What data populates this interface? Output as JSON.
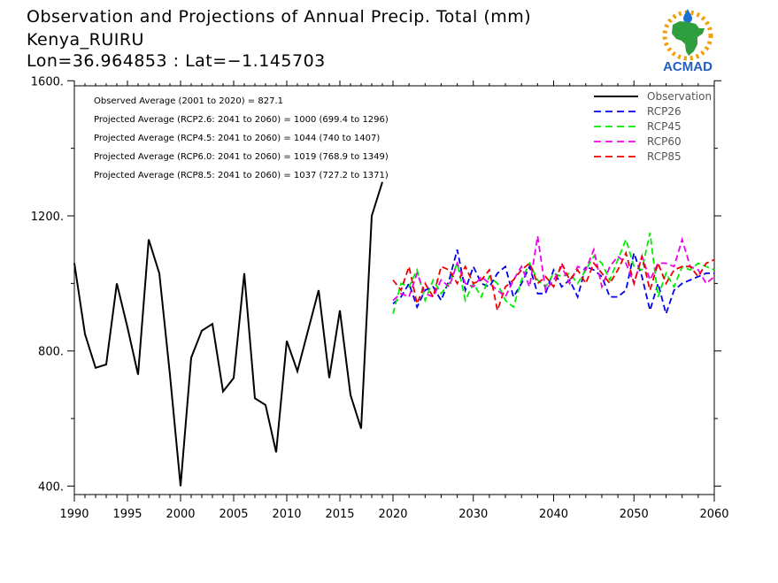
{
  "header": {
    "title": "Observation and Projections of Annual Precip. Total (mm)",
    "location": "Kenya_RUIRU",
    "coords": "Lon=36.964853 : Lat=−1.145703"
  },
  "logo": {
    "text": "ACMAD",
    "colors": {
      "africa": "#2e9e3e",
      "sun": "#f2a007",
      "drop": "#1f6fd1",
      "text": "#1f5fbf"
    }
  },
  "stats": [
    "Observed Average (2001 to 2020) = 827.1",
    "Projected Average (RCP2.6: 2041 to 2060) = 1000 (699.4 to 1296)",
    "Projected Average (RCP4.5: 2041 to 2060) = 1044 (740 to 1407)",
    "Projected Average (RCP6.0: 2041 to 2060) = 1019 (768.9 to 1349)",
    "Projected Average (RCP8.5: 2041 to 2060) = 1037 (727.2 to 1371)"
  ],
  "chart_data": {
    "type": "line",
    "title": "Observation and Projections of Annual Precip. Total (mm)",
    "xlabel": "",
    "ylabel": "",
    "xlim": [
      1990,
      2060
    ],
    "ylim": [
      375,
      1585
    ],
    "legend_position": "top-right",
    "x_ticks": [
      1990,
      1995,
      2000,
      2005,
      2010,
      2015,
      2020,
      2030,
      2040,
      2050,
      2060
    ],
    "y_ticks": [
      400,
      800,
      1200,
      1600
    ],
    "y_tick_labels": [
      "400.",
      "800.",
      "1200.",
      "1600."
    ],
    "series": [
      {
        "name": "Observation",
        "color": "#000000",
        "dash": "solid",
        "x": [
          1990,
          1991,
          1992,
          1993,
          1994,
          1995,
          1996,
          1997,
          1998,
          1999,
          2000,
          2001,
          2002,
          2003,
          2004,
          2005,
          2006,
          2007,
          2008,
          2009,
          2010,
          2011,
          2012,
          2013,
          2014,
          2015,
          2016,
          2017,
          2018,
          2019
        ],
        "y": [
          1060,
          850,
          750,
          760,
          1000,
          870,
          730,
          1130,
          1030,
          730,
          400,
          780,
          860,
          880,
          680,
          720,
          1030,
          660,
          640,
          500,
          830,
          740,
          860,
          980,
          720,
          920,
          670,
          570,
          1200,
          1300
        ]
      },
      {
        "name": "RCP26",
        "color": "#0000ee",
        "dash": "dashed",
        "x": [
          2020,
          2021,
          2022,
          2023,
          2024,
          2025,
          2026,
          2027,
          2028,
          2029,
          2030,
          2031,
          2032,
          2033,
          2034,
          2035,
          2036,
          2037,
          2038,
          2039,
          2040,
          2041,
          2042,
          2043,
          2044,
          2045,
          2046,
          2047,
          2048,
          2049,
          2050,
          2051,
          2052,
          2053,
          2054,
          2055,
          2056,
          2057,
          2058,
          2059,
          2060
        ],
        "y": [
          940,
          960,
          1000,
          930,
          980,
          990,
          950,
          1010,
          1100,
          980,
          1050,
          1000,
          990,
          1030,
          1050,
          960,
          1000,
          1050,
          970,
          970,
          1040,
          990,
          1010,
          960,
          1050,
          1040,
          1020,
          960,
          960,
          980,
          1090,
          1020,
          920,
          1000,
          910,
          980,
          1000,
          1010,
          1020,
          1030,
          1030
        ]
      },
      {
        "name": "RCP45",
        "color": "#00ee00",
        "dash": "dashed",
        "x": [
          2020,
          2021,
          2022,
          2023,
          2024,
          2025,
          2026,
          2027,
          2028,
          2029,
          2030,
          2031,
          2032,
          2033,
          2034,
          2035,
          2036,
          2037,
          2038,
          2039,
          2040,
          2041,
          2042,
          2043,
          2044,
          2045,
          2046,
          2047,
          2048,
          2049,
          2050,
          2051,
          2052,
          2053,
          2054,
          2055,
          2056,
          2057,
          2058,
          2059,
          2060
        ],
        "y": [
          910,
          1000,
          990,
          1040,
          950,
          1010,
          970,
          1000,
          1060,
          950,
          1000,
          960,
          1020,
          1000,
          950,
          930,
          1010,
          1060,
          1010,
          990,
          1030,
          1020,
          1030,
          1000,
          1040,
          1080,
          1060,
          1010,
          1070,
          1130,
          1050,
          1040,
          1150,
          960,
          1030,
          990,
          1050,
          1040,
          1060,
          1050,
          1040
        ]
      },
      {
        "name": "RCP60",
        "color": "#ee00ee",
        "dash": "dashed",
        "x": [
          2020,
          2021,
          2022,
          2023,
          2024,
          2025,
          2026,
          2027,
          2028,
          2029,
          2030,
          2031,
          2032,
          2033,
          2034,
          2035,
          2036,
          2037,
          2038,
          2039,
          2040,
          2041,
          2042,
          2043,
          2044,
          2045,
          2046,
          2047,
          2048,
          2049,
          2050,
          2051,
          2052,
          2053,
          2054,
          2055,
          2056,
          2057,
          2058,
          2059,
          2060
        ],
        "y": [
          950,
          970,
          960,
          1030,
          970,
          960,
          1010,
          990,
          1060,
          1000,
          990,
          1020,
          1000,
          980,
          960,
          1010,
          1050,
          990,
          1140,
          980,
          1010,
          1050,
          1000,
          1050,
          1040,
          1100,
          990,
          1050,
          1080,
          1060,
          1000,
          1080,
          1010,
          1060,
          1060,
          1050,
          1130,
          1050,
          1040,
          1000,
          1020
        ]
      },
      {
        "name": "RCP85",
        "color": "#ee0000",
        "dash": "dashed",
        "x": [
          2020,
          2021,
          2022,
          2023,
          2024,
          2025,
          2026,
          2027,
          2028,
          2029,
          2030,
          2031,
          2032,
          2033,
          2034,
          2035,
          2036,
          2037,
          2038,
          2039,
          2040,
          2041,
          2042,
          2043,
          2044,
          2045,
          2046,
          2047,
          2048,
          2049,
          2050,
          2051,
          2052,
          2053,
          2054,
          2055,
          2056,
          2057,
          2058,
          2059,
          2060
        ],
        "y": [
          1010,
          980,
          1050,
          940,
          1000,
          960,
          1050,
          1040,
          1000,
          1050,
          1000,
          1010,
          1040,
          920,
          990,
          1010,
          1040,
          1060,
          1000,
          1020,
          990,
          1060,
          1010,
          1040,
          1000,
          1060,
          1030,
          1000,
          1040,
          1090,
          1000,
          1080,
          980,
          1060,
          1000,
          1040,
          1050,
          1050,
          1020,
          1060,
          1070
        ]
      }
    ]
  }
}
